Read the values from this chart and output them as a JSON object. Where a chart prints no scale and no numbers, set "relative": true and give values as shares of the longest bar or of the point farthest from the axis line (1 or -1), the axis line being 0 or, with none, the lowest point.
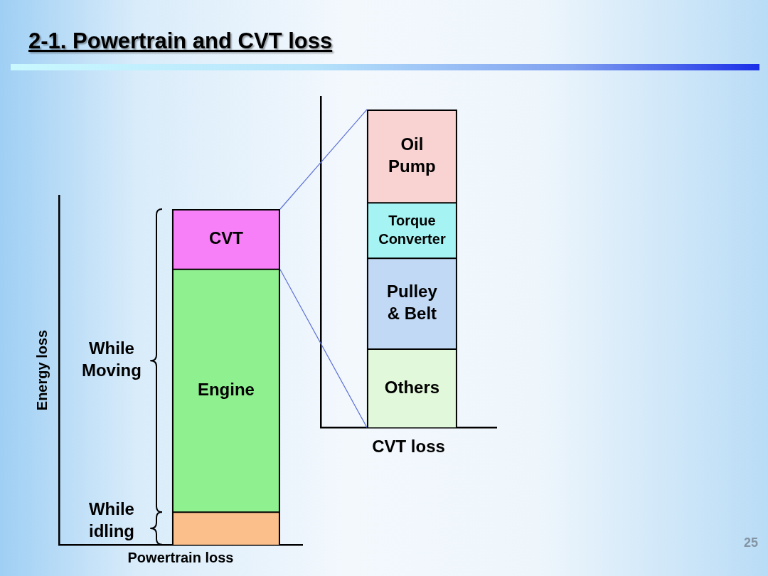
{
  "chart_data": [
    {
      "type": "bar",
      "title": "2-1. Powertrain and CVT loss",
      "xlabel": "Powertrain loss",
      "ylabel": "Energy loss",
      "categories": [
        null
      ],
      "stacked": true,
      "relative": true,
      "series": [
        {
          "name": "While idling",
          "color": "#fbbf8c",
          "values": [
            0.097
          ]
        },
        {
          "name": "Engine",
          "color": "#8ff08f",
          "values": [
            0.723
          ]
        },
        {
          "name": "CVT",
          "color": "#f77ff7",
          "values": [
            0.18
          ]
        }
      ],
      "annotations": [
        "While Moving"
      ]
    },
    {
      "type": "bar",
      "xlabel": "CVT loss",
      "categories": [
        null
      ],
      "stacked": true,
      "relative": true,
      "series": [
        {
          "name": "Others",
          "color": "#e2f8da",
          "values": [
            0.246
          ]
        },
        {
          "name": "Pulley & Belt",
          "color": "#c2d9f5",
          "values": [
            0.286
          ]
        },
        {
          "name": "Torque Converter",
          "color": "#a6f3f3",
          "values": [
            0.174
          ]
        },
        {
          "name": "Oil Pump",
          "color": "#f9d2d2",
          "values": [
            0.294
          ]
        }
      ],
      "annotations": [
        "25"
      ]
    }
  ]
}
